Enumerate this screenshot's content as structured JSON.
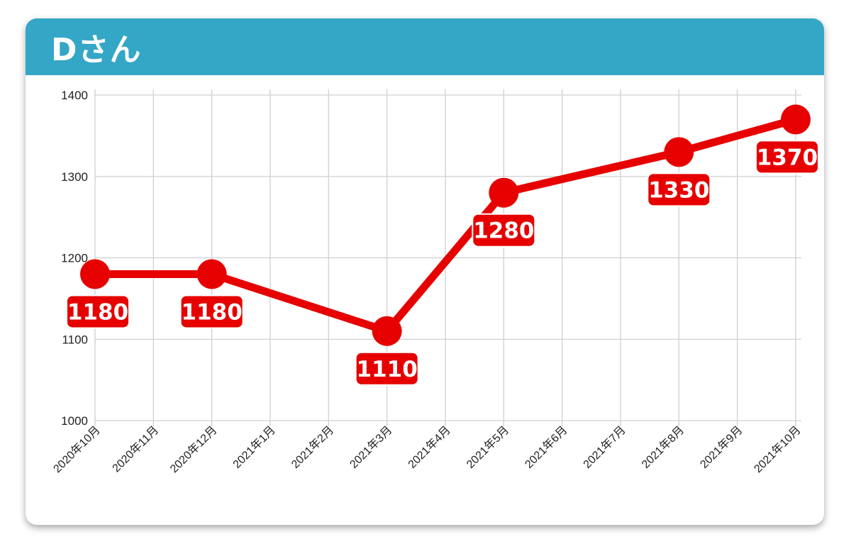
{
  "title": "Dさん",
  "colors": {
    "header": "#34a6c6",
    "series": "#e60000",
    "grid": "#d0d0d0"
  },
  "chart_data": {
    "type": "line",
    "title": "Dさん",
    "xlabel": "",
    "ylabel": "",
    "categories": [
      "2020年10月",
      "2020年11月",
      "2020年12月",
      "2021年1月",
      "2021年2月",
      "2021年3月",
      "2021年4月",
      "2021年5月",
      "2021年6月",
      "2021年7月",
      "2021年8月",
      "2021年9月",
      "2021年10月"
    ],
    "yticks": [
      "1000",
      "1100",
      "1200",
      "1300",
      "1400"
    ],
    "ylim": [
      1000,
      1400
    ],
    "grid": true,
    "series": [
      {
        "points": [
          {
            "x": "2020年10月",
            "y": 1180,
            "label": "1180"
          },
          {
            "x": "2020年12月",
            "y": 1180,
            "label": "1180"
          },
          {
            "x": "2021年3月",
            "y": 1110,
            "label": "1110"
          },
          {
            "x": "2021年5月",
            "y": 1280,
            "label": "1280"
          },
          {
            "x": "2021年8月",
            "y": 1330,
            "label": "1330"
          },
          {
            "x": "2021年10月",
            "y": 1370,
            "label": "1370"
          }
        ]
      }
    ]
  }
}
